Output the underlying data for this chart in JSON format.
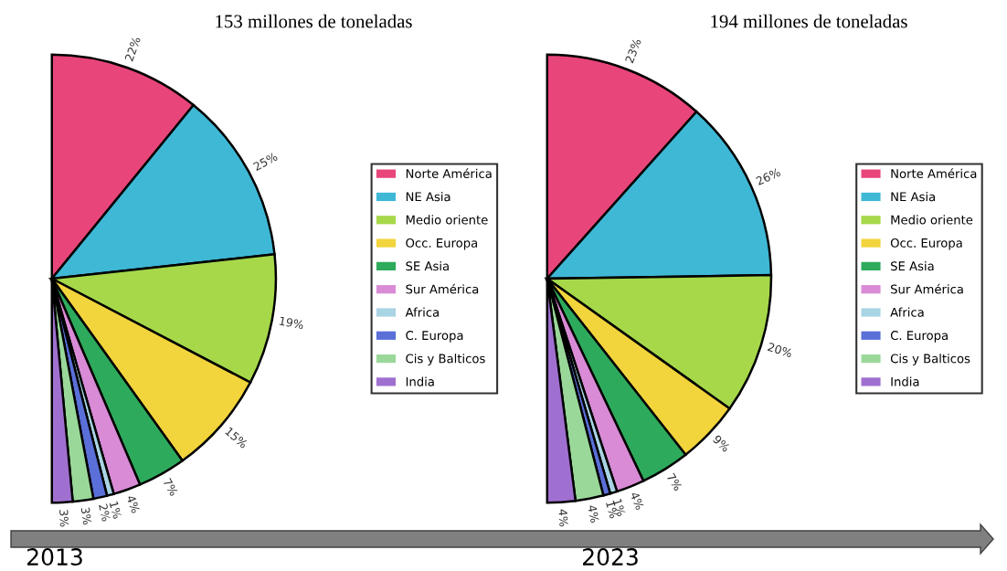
{
  "chart_data": [
    {
      "type": "pie",
      "title": "153 millones de toneladas",
      "categories": [
        "Norte América",
        "NE Asia",
        "Medio oriente",
        "Occ. Europa",
        "SE Asia",
        "Sur América",
        "Africa",
        "C. Europa",
        "Cis y Balticos",
        "India"
      ],
      "values": [
        22,
        25,
        19,
        15,
        7,
        4,
        1,
        2,
        3,
        3
      ],
      "value_labels": [
        "22%",
        "25%",
        "19%",
        "15%",
        "7%",
        "4%",
        "1%",
        "2%",
        "3%",
        "3%"
      ],
      "colors": [
        "#e8457a",
        "#3fb8d6",
        "#a6d84a",
        "#f2d43c",
        "#2eaa5c",
        "#d98bd6",
        "#a9d4e3",
        "#5a6fd8",
        "#9ad89a",
        "#a070d0"
      ],
      "legend": "right",
      "annotations": [
        "2013"
      ]
    },
    {
      "type": "pie",
      "title": "194 millones de toneladas",
      "categories": [
        "Norte América",
        "NE Asia",
        "Medio oriente",
        "Occ. Europa",
        "SE Asia",
        "Sur América",
        "Africa",
        "C. Europa",
        "Cis y Balticos",
        "India"
      ],
      "values": [
        23,
        26,
        20,
        9,
        7,
        4,
        1,
        1,
        4,
        4
      ],
      "value_labels": [
        "23%",
        "26%",
        "20%",
        "9%",
        "7%",
        "4%",
        "1%",
        "1%",
        "4%",
        "4%"
      ],
      "colors": [
        "#e8457a",
        "#3fb8d6",
        "#a6d84a",
        "#f2d43c",
        "#2eaa5c",
        "#d98bd6",
        "#a9d4e3",
        "#5a6fd8",
        "#9ad89a",
        "#a070d0"
      ],
      "legend": "right",
      "annotations": [
        "2023"
      ]
    }
  ]
}
